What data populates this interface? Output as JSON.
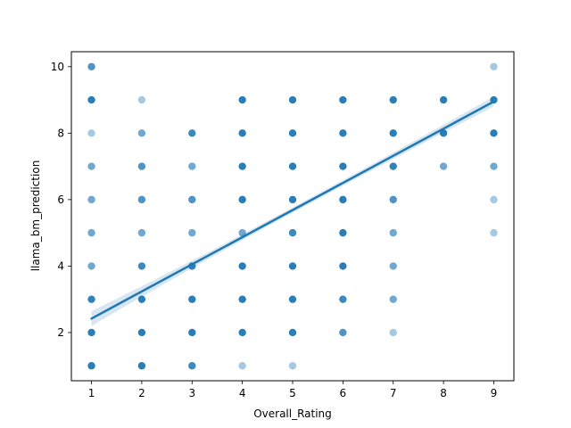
{
  "chart_data": {
    "type": "scatter",
    "title": "",
    "xlabel": "Overall_Rating",
    "ylabel": "llama_bm_prediction",
    "xlim": [
      0.6,
      9.4
    ],
    "ylim": [
      0.55,
      10.45
    ],
    "xticks": [
      1,
      2,
      3,
      4,
      5,
      6,
      7,
      8,
      9
    ],
    "yticks": [
      2,
      4,
      6,
      8,
      10
    ],
    "grid": false,
    "legend": "none",
    "point_color": "#1f77b4",
    "series": [
      {
        "points": [
          {
            "x": 1,
            "y": 10,
            "n": 3
          },
          {
            "x": 1,
            "y": 9,
            "n": 6
          },
          {
            "x": 1,
            "y": 8,
            "n": 1
          },
          {
            "x": 1,
            "y": 7,
            "n": 2
          },
          {
            "x": 1,
            "y": 6,
            "n": 2
          },
          {
            "x": 1,
            "y": 5,
            "n": 2
          },
          {
            "x": 1,
            "y": 4,
            "n": 2
          },
          {
            "x": 1,
            "y": 3,
            "n": 5
          },
          {
            "x": 1,
            "y": 2,
            "n": 6
          },
          {
            "x": 1,
            "y": 1,
            "n": 8
          },
          {
            "x": 2,
            "y": 9,
            "n": 1
          },
          {
            "x": 2,
            "y": 8,
            "n": 2
          },
          {
            "x": 2,
            "y": 7,
            "n": 3
          },
          {
            "x": 2,
            "y": 6,
            "n": 3
          },
          {
            "x": 2,
            "y": 5,
            "n": 2
          },
          {
            "x": 2,
            "y": 4,
            "n": 4
          },
          {
            "x": 2,
            "y": 3,
            "n": 8
          },
          {
            "x": 2,
            "y": 2,
            "n": 8
          },
          {
            "x": 2,
            "y": 1,
            "n": 8
          },
          {
            "x": 3,
            "y": 8,
            "n": 4
          },
          {
            "x": 3,
            "y": 7,
            "n": 2
          },
          {
            "x": 3,
            "y": 6,
            "n": 3
          },
          {
            "x": 3,
            "y": 5,
            "n": 2
          },
          {
            "x": 3,
            "y": 4,
            "n": 5
          },
          {
            "x": 3,
            "y": 3,
            "n": 8
          },
          {
            "x": 3,
            "y": 2,
            "n": 8
          },
          {
            "x": 3,
            "y": 1,
            "n": 4
          },
          {
            "x": 4,
            "y": 9,
            "n": 6
          },
          {
            "x": 4,
            "y": 8,
            "n": 8
          },
          {
            "x": 4,
            "y": 7,
            "n": 8
          },
          {
            "x": 4,
            "y": 6,
            "n": 8
          },
          {
            "x": 4,
            "y": 5,
            "n": 2
          },
          {
            "x": 4,
            "y": 4,
            "n": 8
          },
          {
            "x": 4,
            "y": 3,
            "n": 8
          },
          {
            "x": 4,
            "y": 2,
            "n": 8
          },
          {
            "x": 4,
            "y": 1,
            "n": 1
          },
          {
            "x": 5,
            "y": 9,
            "n": 8
          },
          {
            "x": 5,
            "y": 8,
            "n": 8
          },
          {
            "x": 5,
            "y": 7,
            "n": 8
          },
          {
            "x": 5,
            "y": 6,
            "n": 8
          },
          {
            "x": 5,
            "y": 5,
            "n": 4
          },
          {
            "x": 5,
            "y": 4,
            "n": 8
          },
          {
            "x": 5,
            "y": 3,
            "n": 8
          },
          {
            "x": 5,
            "y": 2,
            "n": 6
          },
          {
            "x": 5,
            "y": 1,
            "n": 1
          },
          {
            "x": 6,
            "y": 9,
            "n": 6
          },
          {
            "x": 6,
            "y": 8,
            "n": 8
          },
          {
            "x": 6,
            "y": 7,
            "n": 8
          },
          {
            "x": 6,
            "y": 6,
            "n": 8
          },
          {
            "x": 6,
            "y": 5,
            "n": 6
          },
          {
            "x": 6,
            "y": 4,
            "n": 6
          },
          {
            "x": 6,
            "y": 3,
            "n": 4
          },
          {
            "x": 6,
            "y": 2,
            "n": 3
          },
          {
            "x": 7,
            "y": 9,
            "n": 8
          },
          {
            "x": 7,
            "y": 8,
            "n": 6
          },
          {
            "x": 7,
            "y": 7,
            "n": 5
          },
          {
            "x": 7,
            "y": 6,
            "n": 3
          },
          {
            "x": 7,
            "y": 5,
            "n": 2
          },
          {
            "x": 7,
            "y": 4,
            "n": 2
          },
          {
            "x": 7,
            "y": 3,
            "n": 2
          },
          {
            "x": 7,
            "y": 2,
            "n": 1
          },
          {
            "x": 8,
            "y": 9,
            "n": 6
          },
          {
            "x": 8,
            "y": 8,
            "n": 6
          },
          {
            "x": 8,
            "y": 7,
            "n": 2
          },
          {
            "x": 9,
            "y": 10,
            "n": 1
          },
          {
            "x": 9,
            "y": 9,
            "n": 8
          },
          {
            "x": 9,
            "y": 8,
            "n": 6
          },
          {
            "x": 9,
            "y": 7,
            "n": 2
          },
          {
            "x": 9,
            "y": 6,
            "n": 1
          },
          {
            "x": 9,
            "y": 5,
            "n": 1
          }
        ]
      }
    ],
    "regression": {
      "x": [
        1,
        9
      ],
      "y": [
        2.42,
        8.95
      ],
      "ci_halfwidth_start": 0.22,
      "ci_halfwidth_mid": 0.08,
      "ci_halfwidth_end": 0.15,
      "color": "#1f77b4"
    }
  }
}
